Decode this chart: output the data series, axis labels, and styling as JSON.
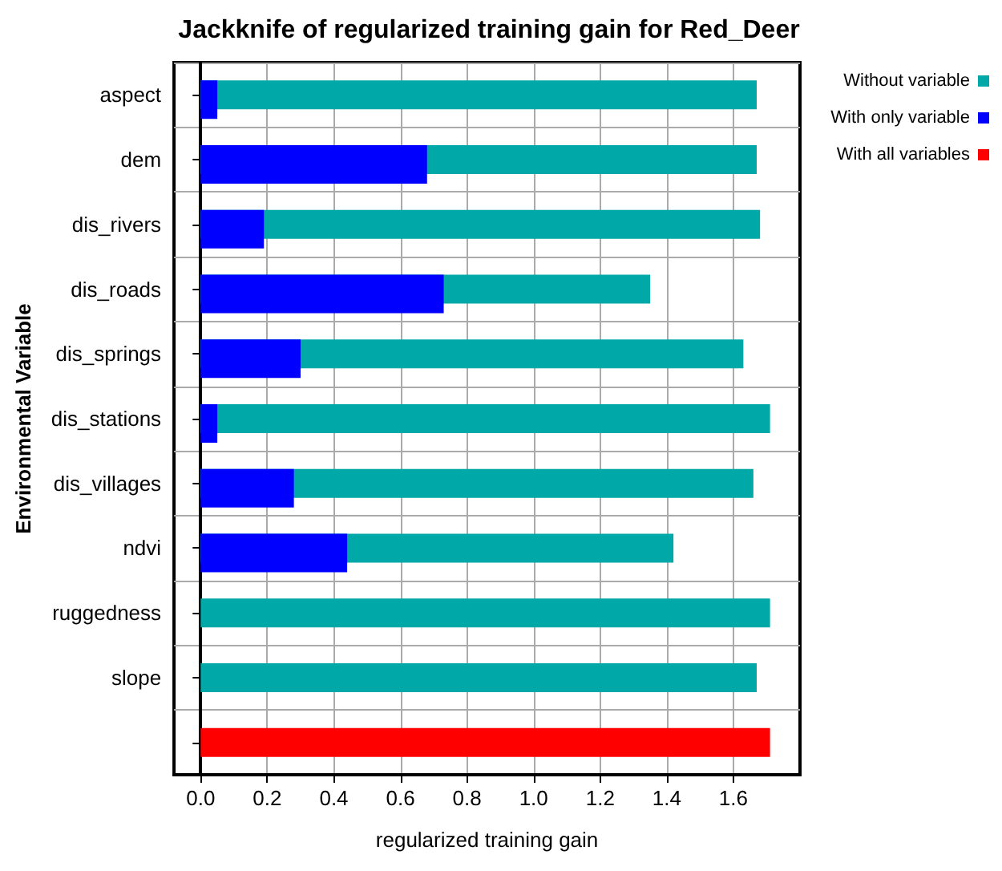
{
  "chart_data": {
    "type": "bar",
    "orientation": "horizontal",
    "title": "Jackknife of regularized training gain for Red_Deer",
    "xlabel": "regularized training gain",
    "ylabel": "Environmental Variable",
    "categories": [
      "aspect",
      "dem",
      "dis_rivers",
      "dis_roads",
      "dis_springs",
      "dis_stations",
      "dis_villages",
      "ndvi",
      "ruggedness",
      "slope",
      null
    ],
    "series": [
      {
        "name": "Without variable",
        "color": "#00a8a8",
        "values": [
          1.67,
          1.67,
          1.68,
          1.35,
          1.63,
          1.71,
          1.66,
          1.42,
          1.71,
          1.67,
          null
        ]
      },
      {
        "name": "With only variable",
        "color": "#0000ff",
        "values": [
          0.05,
          0.68,
          0.19,
          0.73,
          0.3,
          0.05,
          0.28,
          0.44,
          0,
          0,
          null
        ]
      },
      {
        "name": "With all variables",
        "color": "#ff0000",
        "values": [
          null,
          null,
          null,
          null,
          null,
          null,
          null,
          null,
          null,
          null,
          1.71
        ]
      }
    ],
    "xlim": [
      -0.08,
      1.8
    ],
    "xticks": [
      {
        "value": 0,
        "label": "0.0"
      },
      0.2,
      0.4,
      0.6,
      0.8,
      {
        "value": 1,
        "label": "1.0"
      },
      1.2,
      1.4,
      1.6
    ],
    "grid": true,
    "legend": "right"
  }
}
